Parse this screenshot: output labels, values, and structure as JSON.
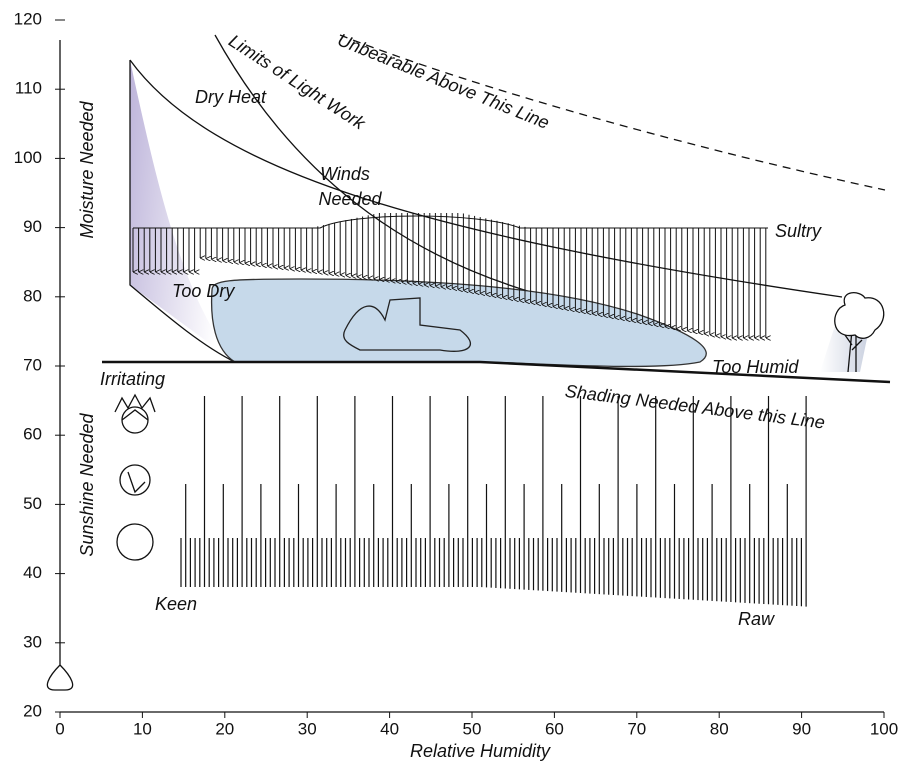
{
  "chart_data": {
    "type": "bioclimatic",
    "x_label": "Relative Humidity",
    "xlim": [
      0,
      100
    ],
    "xticks": [
      0,
      10,
      20,
      30,
      40,
      50,
      60,
      70,
      80,
      90,
      100
    ],
    "ylim": [
      20,
      120
    ],
    "yticks": [
      20,
      30,
      40,
      50,
      60,
      70,
      80,
      90,
      100,
      110,
      120
    ],
    "annotations": [
      "Moisture Needed",
      "Sunshine Needed",
      "Dry Heat",
      "Limits of Light Work",
      "Unbearable Above This Line",
      "Winds",
      "Needed",
      "Sultry",
      "Too Dry",
      "Too Humid",
      "Irritating",
      "Shading Needed Above this Line",
      "Keen",
      "Raw"
    ]
  }
}
